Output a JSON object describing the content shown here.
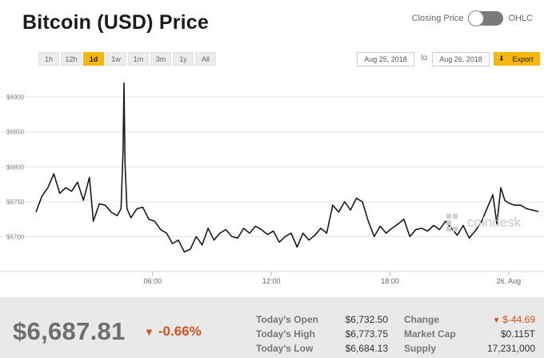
{
  "header": {
    "title": "Bitcoin (USD) Price",
    "toggle_left_label": "Closing Price",
    "toggle_right_label": "OHLC"
  },
  "ranges": [
    "1h",
    "12h",
    "1d",
    "1w",
    "1m",
    "3m",
    "1y",
    "All"
  ],
  "active_range": "1d",
  "date_range": {
    "from": "Aug 25, 2018",
    "separator": "to",
    "to": "Aug 26, 2018",
    "export_label": "Export",
    "export_icon": "download-arrow-icon"
  },
  "colors": {
    "accent": "#f6b60b",
    "line": "#1a1a1a",
    "negative": "#d0521e",
    "grid": "#e6e6e6"
  },
  "watermark": "coindesk",
  "chart_data": {
    "type": "line",
    "y_ticks": [
      "$6900",
      "$6850",
      "$6800",
      "$6750",
      "$6700"
    ],
    "y_tick_values": [
      6900,
      6850,
      6800,
      6750,
      6700
    ],
    "x_ticks": [
      "06:00",
      "12:00",
      "18:00",
      "26. Aug"
    ],
    "x_tick_hours": [
      6,
      12,
      18,
      24
    ],
    "ylim": [
      6650,
      6930
    ],
    "xlim": [
      0.1,
      25.5
    ],
    "grid": true,
    "series": [
      {
        "x": [
          0.1,
          0.4,
          0.7,
          1.0,
          1.3,
          1.6,
          1.9,
          2.2,
          2.5,
          2.8,
          3.0,
          3.3,
          3.6,
          3.9,
          4.2,
          4.4,
          4.5,
          4.55,
          4.6,
          4.7,
          4.9,
          5.2,
          5.5,
          5.8,
          6.1,
          6.4,
          6.7,
          7.0,
          7.3,
          7.6,
          7.9,
          8.2,
          8.5,
          8.8,
          9.1,
          9.4,
          9.7,
          10.0,
          10.3,
          10.6,
          10.9,
          11.2,
          11.5,
          11.8,
          12.1,
          12.4,
          12.7,
          13.0,
          13.3,
          13.6,
          13.9,
          14.2,
          14.5,
          14.8,
          15.1,
          15.4,
          15.7,
          16.0,
          16.3,
          16.6,
          16.9,
          17.2,
          17.5,
          17.8,
          18.1,
          18.4,
          18.7,
          19.0,
          19.3,
          19.6,
          19.9,
          20.2,
          20.5,
          20.8,
          21.1,
          21.4,
          21.7,
          22.0,
          22.3,
          22.6,
          22.9,
          23.2,
          23.4,
          23.6,
          23.8,
          24.0,
          24.3,
          24.6,
          24.9,
          25.2,
          25.5
        ],
        "y": [
          6735,
          6758,
          6770,
          6790,
          6762,
          6770,
          6765,
          6778,
          6752,
          6785,
          6722,
          6747,
          6745,
          6735,
          6730,
          6740,
          6822,
          6920,
          6805,
          6740,
          6727,
          6740,
          6742,
          6725,
          6722,
          6710,
          6705,
          6690,
          6695,
          6678,
          6682,
          6700,
          6688,
          6712,
          6695,
          6705,
          6710,
          6700,
          6698,
          6712,
          6705,
          6715,
          6710,
          6703,
          6708,
          6692,
          6700,
          6705,
          6685,
          6705,
          6695,
          6702,
          6712,
          6705,
          6745,
          6735,
          6750,
          6738,
          6755,
          6750,
          6722,
          6700,
          6715,
          6705,
          6712,
          6718,
          6725,
          6700,
          6710,
          6712,
          6708,
          6716,
          6710,
          6722,
          6712,
          6702,
          6716,
          6698,
          6708,
          6720,
          6740,
          6760,
          6718,
          6770,
          6752,
          6748,
          6745,
          6745,
          6740,
          6738,
          6736
        ]
      }
    ]
  },
  "footer": {
    "price": "$6,687.81",
    "change_pct": "-0.66%",
    "change_icon": "down-triangle-icon",
    "stats_left": [
      {
        "label": "Today's Open",
        "value": "$6,732.50"
      },
      {
        "label": "Today's High",
        "value": "$6,773.75"
      },
      {
        "label": "Today's Low",
        "value": "$6,684.13"
      }
    ],
    "stats_right": [
      {
        "label": "Change",
        "value": "$-44.69",
        "negative": true
      },
      {
        "label": "Market Cap",
        "value": "$0.115T"
      },
      {
        "label": "Supply",
        "value": "17,231,000"
      }
    ]
  }
}
